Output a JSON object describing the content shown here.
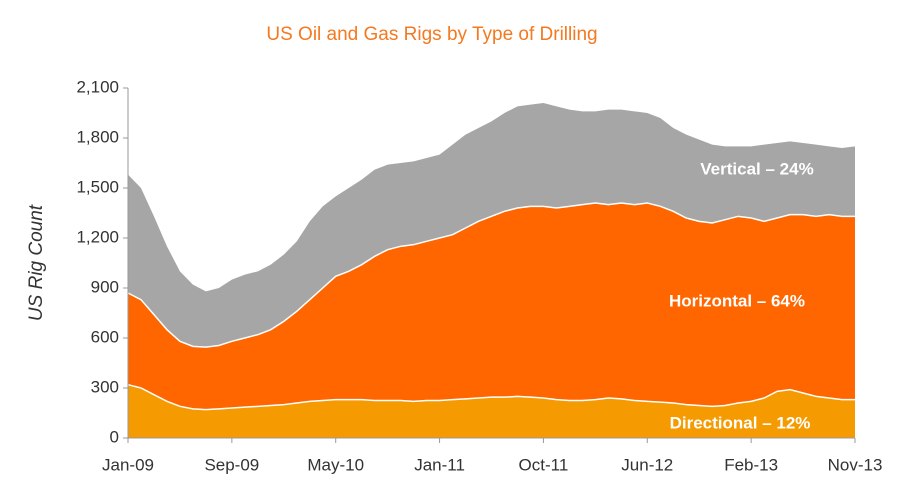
{
  "chart_data": {
    "type": "stacked_area",
    "title": "US Oil and Gas Rigs by Type of Drilling",
    "y_label": "US Rig Count",
    "categories": [
      "Jan-09",
      null,
      null,
      null,
      null,
      null,
      null,
      null,
      "Sep-09",
      null,
      null,
      null,
      null,
      null,
      null,
      null,
      "May-10",
      null,
      null,
      null,
      null,
      null,
      null,
      null,
      "Jan-11",
      null,
      null,
      null,
      null,
      null,
      null,
      null,
      "Oct-11",
      null,
      null,
      null,
      null,
      null,
      null,
      null,
      "Jun-12",
      null,
      null,
      null,
      null,
      null,
      null,
      null,
      "Feb-13",
      null,
      null,
      null,
      null,
      null,
      null,
      null,
      "Nov-13"
    ],
    "series": [
      {
        "name": "Directional – 12%",
        "color": "#f59a00",
        "values": [
          320,
          300,
          260,
          220,
          190,
          175,
          170,
          175,
          180,
          185,
          190,
          195,
          200,
          210,
          220,
          225,
          230,
          230,
          230,
          225,
          225,
          225,
          220,
          225,
          225,
          230,
          235,
          240,
          245,
          245,
          250,
          245,
          240,
          230,
          225,
          225,
          230,
          240,
          235,
          225,
          220,
          215,
          210,
          200,
          195,
          190,
          195,
          210,
          220,
          240,
          280,
          290,
          270,
          250,
          240,
          230,
          230
        ]
      },
      {
        "name": "Horizontal – 64%",
        "color": "#ff6600",
        "values": [
          550,
          530,
          480,
          430,
          390,
          375,
          375,
          380,
          400,
          415,
          430,
          455,
          500,
          550,
          610,
          675,
          740,
          770,
          810,
          865,
          905,
          925,
          940,
          955,
          975,
          990,
          1025,
          1060,
          1085,
          1115,
          1130,
          1145,
          1150,
          1150,
          1165,
          1175,
          1180,
          1160,
          1175,
          1175,
          1190,
          1175,
          1150,
          1120,
          1105,
          1100,
          1115,
          1120,
          1100,
          1060,
          1040,
          1050,
          1070,
          1080,
          1100,
          1100,
          1100
        ]
      },
      {
        "name": "Vertical – 24%",
        "color": "#a6a6a6",
        "values": [
          710,
          670,
          590,
          500,
          420,
          370,
          335,
          345,
          370,
          380,
          380,
          390,
          400,
          420,
          470,
          490,
          480,
          500,
          510,
          520,
          510,
          500,
          500,
          500,
          500,
          540,
          560,
          560,
          570,
          590,
          610,
          610,
          620,
          610,
          580,
          560,
          550,
          570,
          560,
          560,
          540,
          530,
          500,
          500,
          490,
          470,
          440,
          420,
          430,
          460,
          450,
          440,
          430,
          430,
          410,
          410,
          420
        ]
      }
    ],
    "ylim": [
      0,
      2100
    ],
    "yticks": [
      0,
      300,
      600,
      900,
      {
        "value": 1200,
        "label": "1,200"
      },
      {
        "value": 1500,
        "label": "1,500"
      },
      {
        "value": 1800,
        "label": "1,800"
      },
      {
        "value": 2100,
        "label": "2,100"
      }
    ],
    "grid": false
  }
}
